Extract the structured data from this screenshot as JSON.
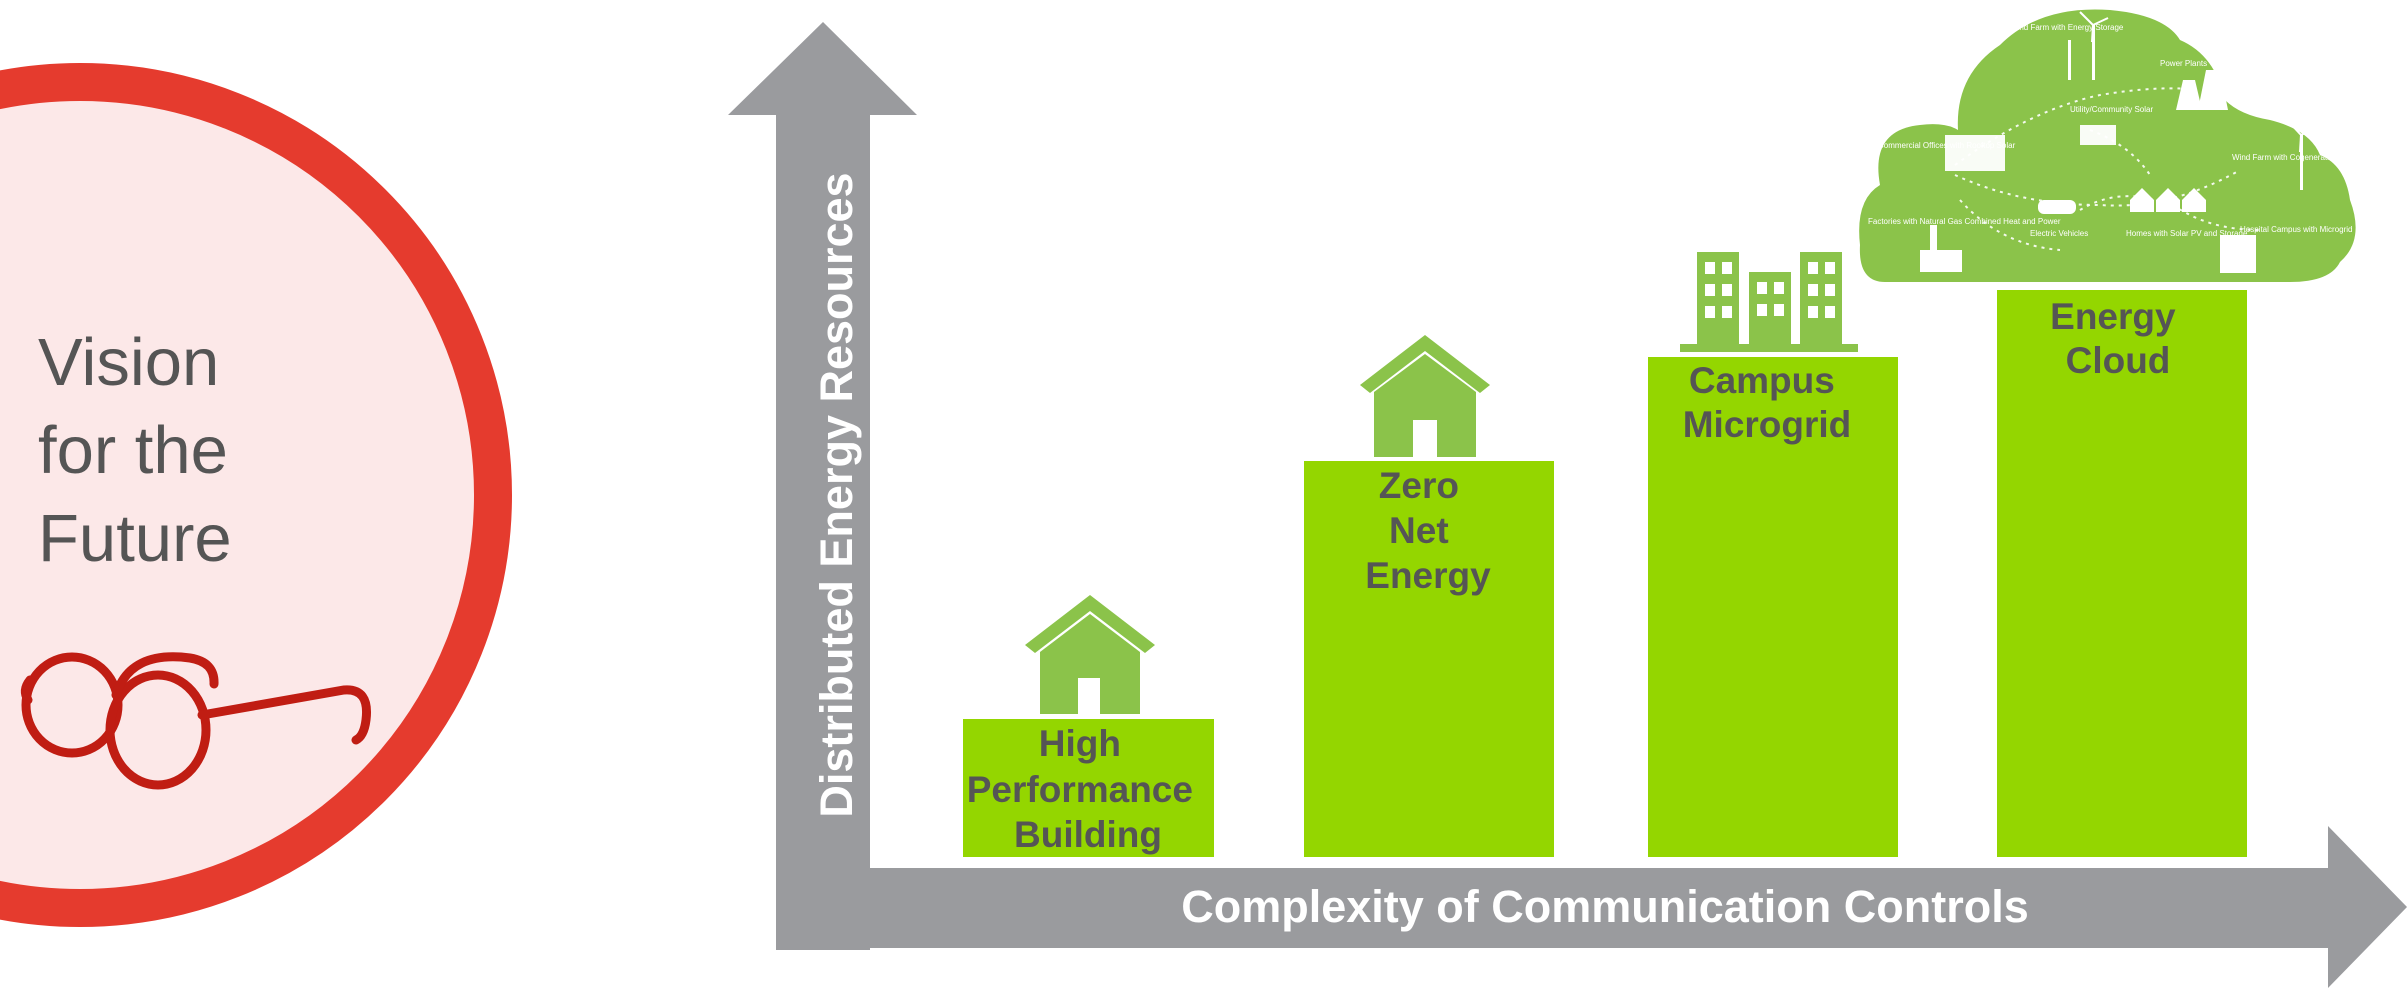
{
  "vision": {
    "lines": [
      "Vision",
      "for the",
      "Future"
    ],
    "accent_color": "#e53b2e",
    "fill_color": "#fce8e8"
  },
  "axes": {
    "y_label": "Distributed Energy Resources",
    "x_label": "Complexity of Communication Controls",
    "color": "#9a9b9e"
  },
  "bars": [
    {
      "lines": [
        "High",
        "Performance",
        "Building"
      ],
      "icon": "house-icon"
    },
    {
      "lines": [
        "Zero",
        "Net",
        "Energy"
      ],
      "icon": "house-icon"
    },
    {
      "lines": [
        "Campus",
        "Microgrid"
      ],
      "icon": "buildings-icon"
    },
    {
      "lines": [
        "Energy",
        "Cloud"
      ],
      "icon": "energy-cloud-icon"
    }
  ],
  "bar_color": "#94d600",
  "icon_color": "#8bc34a",
  "cloud": {
    "labels": [
      "Wind Farm with Energy Storage",
      "Power Plants",
      "Utility/Community Solar",
      "Commercial Offices with Rooftop Solar",
      "Wind Farm with Cogeneration",
      "Electric Vehicles",
      "Homes with Solar PV and Storage",
      "Factories with Natural Gas Combined Heat and Power",
      "Hospital Campus with Microgrid"
    ]
  }
}
